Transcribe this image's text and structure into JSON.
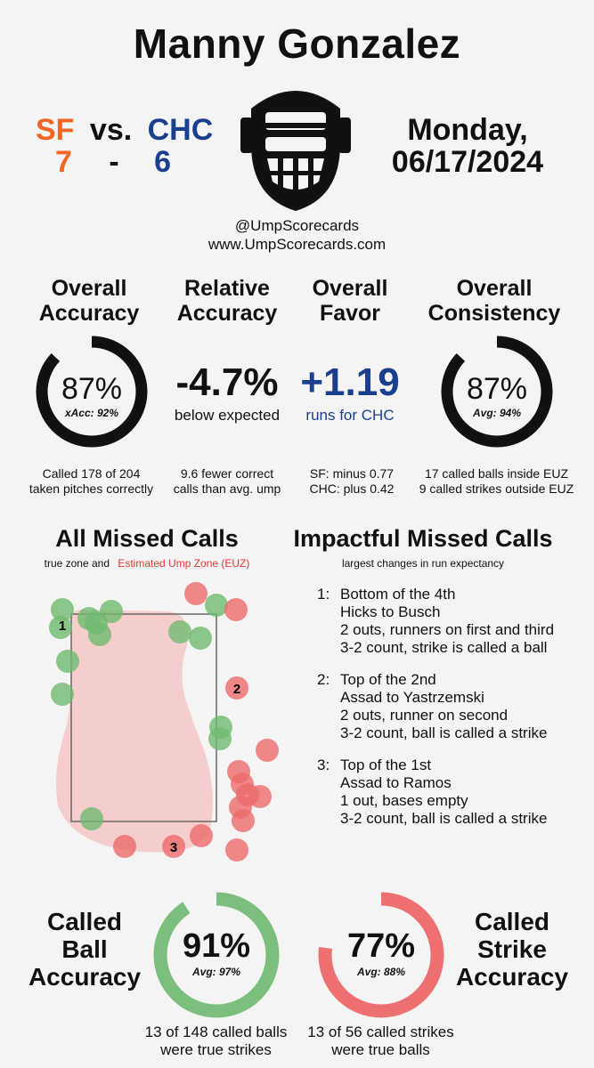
{
  "header": {
    "umpire": "Manny Gonzalez",
    "away_team": "SF",
    "vs": "vs.",
    "home_team": "CHC",
    "away_score": "7",
    "dash": "-",
    "home_score": "6",
    "day": "Monday,",
    "date": "06/17/2024",
    "handle": "@UmpScorecards",
    "website": "www.UmpScorecards.com"
  },
  "colors": {
    "sf": "#f26522",
    "chc": "#1b3f8f",
    "green": "#7cbf7c",
    "red": "#ee7070"
  },
  "stats": {
    "overall_accuracy": {
      "title1": "Overall",
      "title2": "Accuracy",
      "value": "87%",
      "sub": "xAcc: 92%",
      "note1": "Called 178 of 204",
      "note2": "taken pitches correctly",
      "fraction": 0.87
    },
    "relative_accuracy": {
      "title1": "Relative",
      "title2": "Accuracy",
      "value": "-4.7%",
      "sub": "below expected",
      "note1": "9.6 fewer correct",
      "note2": "calls than avg. ump"
    },
    "overall_favor": {
      "title1": "Overall",
      "title2": "Favor",
      "value": "+1.19",
      "sub": "runs for CHC",
      "note1": "SF: minus 0.77",
      "note2": "CHC: plus 0.42"
    },
    "overall_consistency": {
      "title1": "Overall",
      "title2": "Consistency",
      "value": "87%",
      "sub": "Avg: 94%",
      "note1": "17 called balls inside EUZ",
      "note2": "9 called strikes outside EUZ",
      "fraction": 0.87
    }
  },
  "missed": {
    "title": "All Missed Calls",
    "legend_a": "true zone and",
    "legend_b": "Estimated Ump Zone (EUZ)",
    "labels": [
      "1",
      "2",
      "3"
    ]
  },
  "impactful": {
    "title": "Impactful Missed Calls",
    "subtitle": "largest changes in run expectancy",
    "calls": [
      {
        "num": "1:",
        "lines": [
          "Bottom of the 4th",
          "Hicks to Busch",
          "2 outs, runners on first and third",
          "3-2 count, strike is called a ball"
        ]
      },
      {
        "num": "2:",
        "lines": [
          "Top of the 2nd",
          "Assad to Yastrzemski",
          "2 outs, runner on second",
          "3-2 count, ball is called a strike"
        ]
      },
      {
        "num": "3:",
        "lines": [
          "Top of the 1st",
          "Assad to Ramos",
          "1 out, bases empty",
          "3-2 count, ball is called a strike"
        ]
      }
    ]
  },
  "bottom": {
    "ball": {
      "title1": "Called",
      "title2": "Ball",
      "title3": "Accuracy",
      "value": "91%",
      "sub": "Avg: 97%",
      "note1": "13 of 148 called balls",
      "note2": "were true strikes",
      "fraction": 0.91
    },
    "strike": {
      "title1": "Called",
      "title2": "Strike",
      "title3": "Accuracy",
      "value": "77%",
      "sub": "Avg: 88%",
      "note1": "13 of 56 called strikes",
      "note2": "were true balls",
      "fraction": 0.77
    }
  }
}
